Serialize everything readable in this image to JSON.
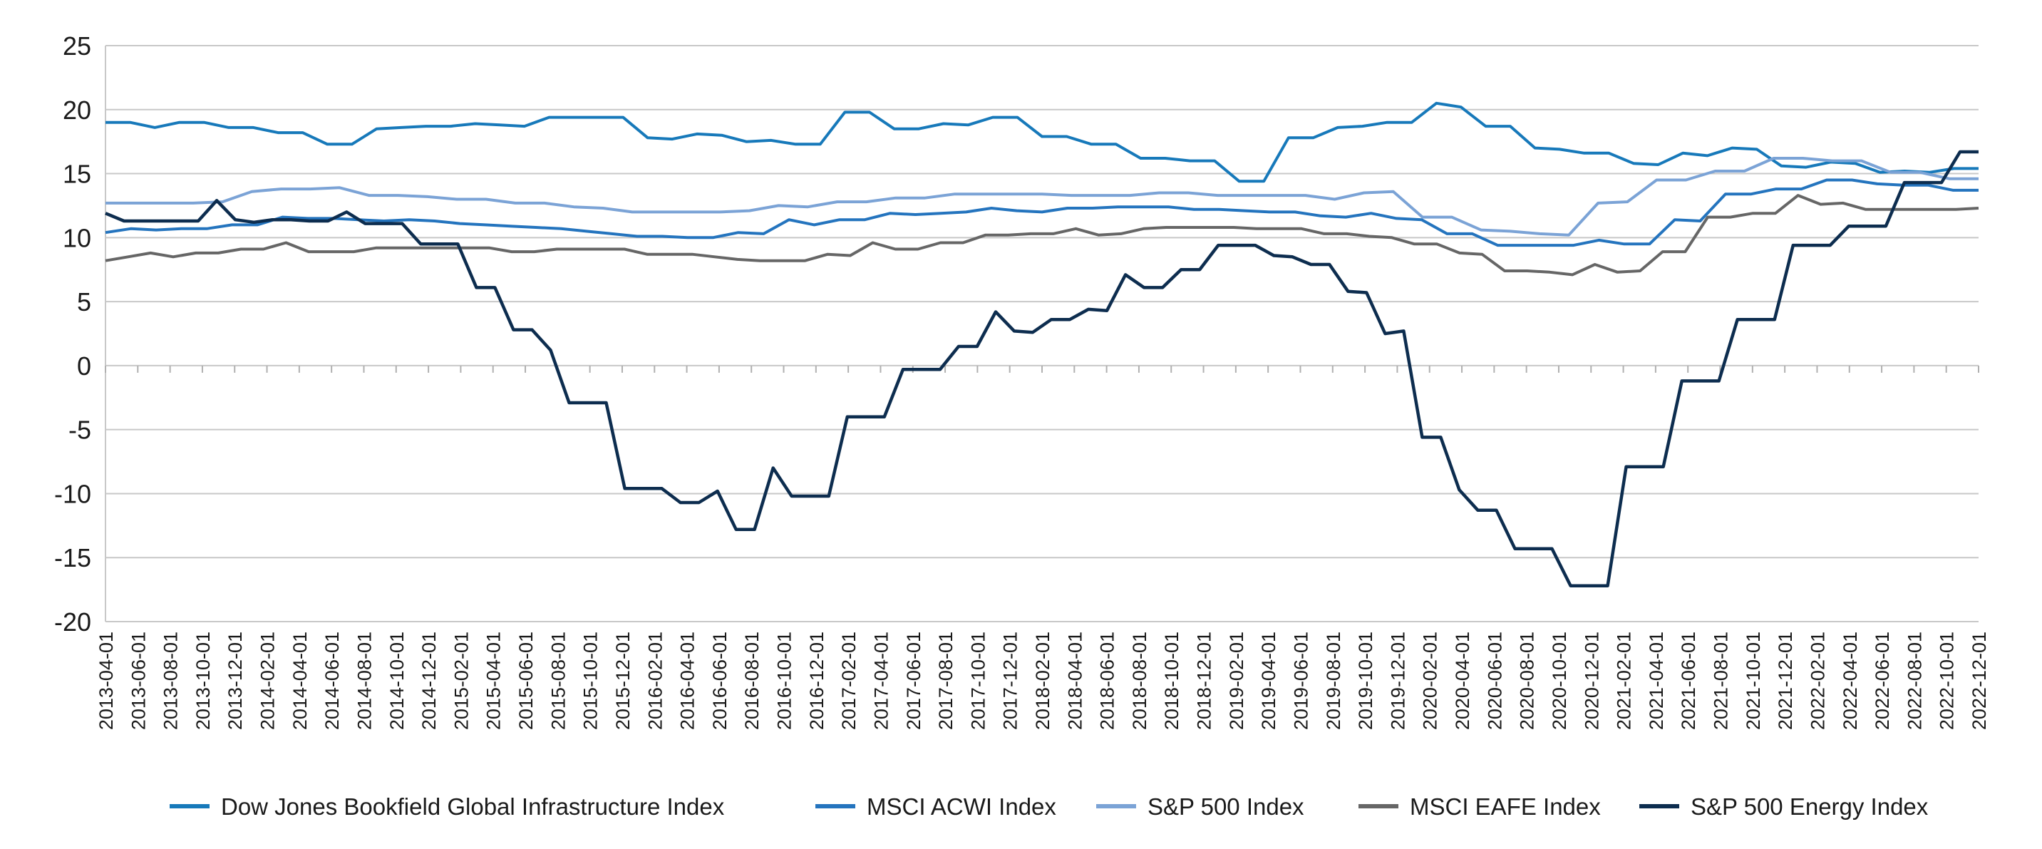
{
  "chart_data": {
    "type": "line",
    "title": "",
    "xlabel": "",
    "ylabel": "",
    "ylim": [
      -20,
      25
    ],
    "yticks": [
      25,
      20,
      15,
      10,
      5,
      0,
      -5,
      -10,
      -15,
      -20
    ],
    "grid": true,
    "legend_position": "bottom",
    "x_tick_labels": [
      "2013-04-01",
      "2013-06-01",
      "2013-08-01",
      "2013-10-01",
      "2013-12-01",
      "2014-02-01",
      "2014-04-01",
      "2014-06-01",
      "2014-08-01",
      "2014-10-01",
      "2014-12-01",
      "2015-02-01",
      "2015-04-01",
      "2015-06-01",
      "2015-08-01",
      "2015-10-01",
      "2015-12-01",
      "2016-02-01",
      "2016-04-01",
      "2016-06-01",
      "2016-08-01",
      "2016-10-01",
      "2016-12-01",
      "2017-02-01",
      "2017-04-01",
      "2017-06-01",
      "2017-08-01",
      "2017-10-01",
      "2017-12-01",
      "2018-02-01",
      "2018-04-01",
      "2018-06-01",
      "2018-08-01",
      "2018-10-01",
      "2018-12-01",
      "2019-02-01",
      "2019-04-01",
      "2019-06-01",
      "2019-08-01",
      "2019-10-01",
      "2019-12-01",
      "2020-02-01",
      "2020-04-01",
      "2020-06-01",
      "2020-08-01",
      "2020-10-01",
      "2020-12-01",
      "2021-02-01",
      "2021-04-01",
      "2021-06-01",
      "2021-08-01",
      "2021-10-01",
      "2021-12-01",
      "2022-02-01",
      "2022-04-01",
      "2022-06-01",
      "2022-08-01",
      "2022-10-01",
      "2022-12-01"
    ],
    "series": [
      {
        "name": "Dow Jones Bookfield Global Infrastructure Index",
        "color": "#1779ba",
        "values": [
          19.0,
          19.0,
          18.6,
          19.0,
          19.0,
          18.6,
          18.6,
          18.2,
          18.2,
          17.3,
          17.3,
          18.5,
          18.6,
          18.7,
          18.7,
          18.9,
          18.8,
          18.7,
          19.4,
          19.4,
          19.4,
          19.4,
          17.8,
          17.7,
          18.1,
          18.0,
          17.5,
          17.6,
          17.3,
          17.3,
          19.8,
          19.8,
          18.5,
          18.5,
          18.9,
          18.8,
          19.4,
          19.4,
          17.9,
          17.9,
          17.3,
          17.3,
          16.2,
          16.2,
          16.0,
          16.0,
          14.4,
          14.4,
          17.8,
          17.8,
          18.6,
          18.7,
          19.0,
          19.0,
          20.5,
          20.2,
          18.7,
          18.7,
          17.0,
          16.9,
          16.6,
          16.6,
          15.8,
          15.7,
          16.6,
          16.4,
          17.0,
          16.9,
          15.6,
          15.5,
          15.9,
          15.8,
          15.1,
          15.2,
          15.1,
          15.4,
          15.4
        ]
      },
      {
        "name": "MSCI ACWI Index",
        "color": "#2474be",
        "values": [
          10.4,
          10.7,
          10.6,
          10.7,
          10.7,
          11.0,
          11.0,
          11.6,
          11.5,
          11.5,
          11.4,
          11.3,
          11.4,
          11.3,
          11.1,
          11.0,
          10.9,
          10.8,
          10.7,
          10.5,
          10.3,
          10.1,
          10.1,
          10.0,
          10.0,
          10.4,
          10.3,
          11.4,
          11.0,
          11.4,
          11.4,
          11.9,
          11.8,
          11.9,
          12.0,
          12.3,
          12.1,
          12.0,
          12.3,
          12.3,
          12.4,
          12.4,
          12.4,
          12.2,
          12.2,
          12.1,
          12.0,
          12.0,
          11.7,
          11.6,
          11.9,
          11.5,
          11.4,
          10.3,
          10.3,
          9.4,
          9.4,
          9.4,
          9.4,
          9.8,
          9.5,
          9.5,
          11.4,
          11.3,
          13.4,
          13.4,
          13.8,
          13.8,
          14.5,
          14.5,
          14.2,
          14.1,
          14.1,
          13.7,
          13.7
        ]
      },
      {
        "name": "S&P 500 Index",
        "color": "#7ba3d6",
        "values": [
          12.7,
          12.7,
          12.7,
          12.7,
          12.8,
          13.6,
          13.8,
          13.8,
          13.9,
          13.3,
          13.3,
          13.2,
          13.0,
          13.0,
          12.7,
          12.7,
          12.4,
          12.3,
          12.0,
          12.0,
          12.0,
          12.0,
          12.1,
          12.5,
          12.4,
          12.8,
          12.8,
          13.1,
          13.1,
          13.4,
          13.4,
          13.4,
          13.4,
          13.3,
          13.3,
          13.3,
          13.5,
          13.5,
          13.3,
          13.3,
          13.3,
          13.3,
          13.0,
          13.5,
          13.6,
          11.6,
          11.6,
          10.6,
          10.5,
          10.3,
          10.2,
          12.7,
          12.8,
          14.5,
          14.5,
          15.2,
          15.2,
          16.2,
          16.2,
          16.0,
          16.0,
          15.1,
          15.1,
          14.6,
          14.6
        ]
      },
      {
        "name": "MSCI EAFE Index",
        "color": "#666666",
        "values": [
          8.2,
          8.5,
          8.8,
          8.5,
          8.8,
          8.8,
          9.1,
          9.1,
          9.6,
          8.9,
          8.9,
          8.9,
          9.2,
          9.2,
          9.2,
          9.2,
          9.2,
          9.2,
          8.9,
          8.9,
          9.1,
          9.1,
          9.1,
          9.1,
          8.7,
          8.7,
          8.7,
          8.5,
          8.3,
          8.2,
          8.2,
          8.2,
          8.7,
          8.6,
          9.6,
          9.1,
          9.1,
          9.6,
          9.6,
          10.2,
          10.2,
          10.3,
          10.3,
          10.7,
          10.2,
          10.3,
          10.7,
          10.8,
          10.8,
          10.8,
          10.8,
          10.7,
          10.7,
          10.7,
          10.3,
          10.3,
          10.1,
          10.0,
          9.5,
          9.5,
          8.8,
          8.7,
          7.4,
          7.4,
          7.3,
          7.1,
          7.9,
          7.3,
          7.4,
          8.9,
          8.9,
          11.6,
          11.6,
          11.9,
          11.9,
          13.3,
          12.6,
          12.7,
          12.2,
          12.2,
          12.2,
          12.2,
          12.2,
          12.3
        ]
      },
      {
        "name": "S&P 500 Energy Index",
        "color": "#0d2d4f",
        "values": [
          11.9,
          11.3,
          11.3,
          11.3,
          11.3,
          11.3,
          12.9,
          11.4,
          11.2,
          11.4,
          11.4,
          11.3,
          11.3,
          12.0,
          11.1,
          11.1,
          11.1,
          9.5,
          9.5,
          9.5,
          6.1,
          6.1,
          2.8,
          2.8,
          1.2,
          -2.9,
          -2.9,
          -2.9,
          -9.6,
          -9.6,
          -9.6,
          -10.7,
          -10.7,
          -9.8,
          -12.8,
          -12.8,
          -8.0,
          -10.2,
          -10.2,
          -10.2,
          -4.0,
          -4.0,
          -4.0,
          -0.3,
          -0.3,
          -0.3,
          1.5,
          1.5,
          4.2,
          2.7,
          2.6,
          3.6,
          3.6,
          4.4,
          4.3,
          7.1,
          6.1,
          6.1,
          7.5,
          7.5,
          9.4,
          9.4,
          9.4,
          8.6,
          8.5,
          7.9,
          7.9,
          5.8,
          5.7,
          2.5,
          2.7,
          -5.6,
          -5.6,
          -9.7,
          -11.3,
          -11.3,
          -14.3,
          -14.3,
          -14.3,
          -17.2,
          -17.2,
          -17.2,
          -7.9,
          -7.9,
          -7.9,
          -1.2,
          -1.2,
          -1.2,
          3.6,
          3.6,
          3.6,
          9.4,
          9.4,
          9.4,
          10.9,
          10.9,
          10.9,
          14.3,
          14.3,
          14.3,
          16.7,
          16.7
        ]
      }
    ]
  }
}
